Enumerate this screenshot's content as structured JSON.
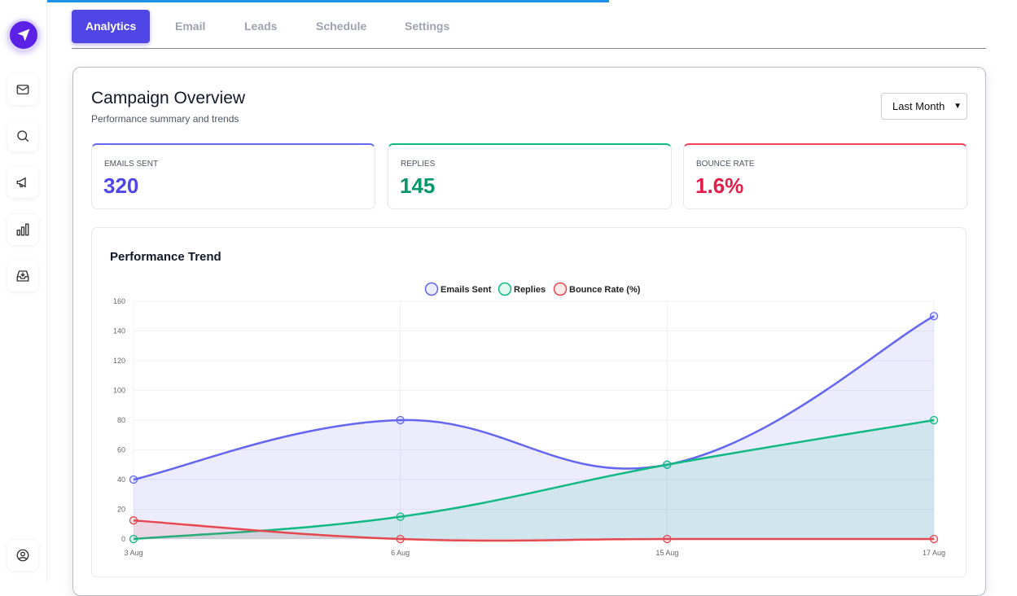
{
  "sidebar": {
    "logo": "send-icon",
    "items": [
      {
        "icon": "mail-icon"
      },
      {
        "icon": "search-icon"
      },
      {
        "icon": "megaphone-icon"
      },
      {
        "icon": "bar-chart-icon"
      },
      {
        "icon": "inbox-icon"
      }
    ],
    "bottom": {
      "icon": "user-icon"
    }
  },
  "tabs": [
    {
      "label": "Analytics",
      "active": true
    },
    {
      "label": "Email"
    },
    {
      "label": "Leads"
    },
    {
      "label": "Schedule"
    },
    {
      "label": "Settings"
    }
  ],
  "overview": {
    "title": "Campaign Overview",
    "subtitle": "Performance summary and trends",
    "range": "Last Month"
  },
  "stats": [
    {
      "label": "EMAILS SENT",
      "value": "320",
      "color": "#4f46e5"
    },
    {
      "label": "REPLIES",
      "value": "145",
      "color": "#059669"
    },
    {
      "label": "BOUNCE RATE",
      "value": "1.6%",
      "color": "#e11d48"
    }
  ],
  "trend_title": "Performance Trend",
  "chart_data": {
    "type": "line",
    "categories": [
      "3 Aug",
      "6 Aug",
      "15 Aug",
      "17 Aug"
    ],
    "series": [
      {
        "name": "Emails Sent",
        "values": [
          40,
          80,
          50,
          150
        ],
        "color": "#6366f1",
        "fill": "rgba(99,102,241,0.12)"
      },
      {
        "name": "Replies",
        "values": [
          0,
          15,
          50,
          80
        ],
        "color": "#10b981",
        "fill": "rgba(16,185,129,0.12)"
      },
      {
        "name": "Bounce Rate (%)",
        "values": [
          12.5,
          0,
          0,
          0
        ],
        "color": "#e5484d",
        "fill": "rgba(229,72,77,0.12)"
      }
    ],
    "ylim": [
      0,
      160
    ],
    "yticks": [
      0,
      20,
      40,
      60,
      80,
      100,
      120,
      140,
      160
    ],
    "legend": "top-center",
    "grid": true
  }
}
